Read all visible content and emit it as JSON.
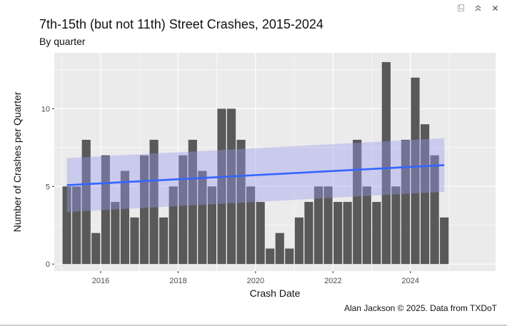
{
  "window_controls": {
    "icons": [
      "restore-icon",
      "collapse-icon",
      "close-icon"
    ]
  },
  "chart_data": {
    "type": "bar",
    "title": "7th-15th (but not 11th) Street Crashes, 2015-2024",
    "subtitle": "By quarter",
    "caption": "Alan Jackson © 2025. Data from TXDoT",
    "xlabel": "Crash Date",
    "ylabel": "Number of Crashes per Quarter",
    "x_ticks": [
      "2016",
      "2018",
      "2020",
      "2022",
      "2024"
    ],
    "y_ticks": [
      "0",
      "5",
      "10"
    ],
    "xlim": [
      2014.8,
      2026.2
    ],
    "ylim": [
      -0.45,
      13.6
    ],
    "grid": true,
    "panel_color": "#ebebeb",
    "bar_color": "#595959",
    "series": [
      {
        "x": [
          2015.125,
          2015.375,
          2015.625,
          2015.875,
          2016.125,
          2016.375,
          2016.625,
          2016.875,
          2017.125,
          2017.375,
          2017.625,
          2017.875,
          2018.125,
          2018.375,
          2018.625,
          2018.875,
          2019.125,
          2019.375,
          2019.625,
          2019.875,
          2020.125,
          2020.375,
          2020.625,
          2020.875,
          2021.125,
          2021.375,
          2021.625,
          2021.875,
          2022.125,
          2022.375,
          2022.625,
          2022.875,
          2023.125,
          2023.375,
          2023.625,
          2023.875,
          2024.125,
          2024.375,
          2024.625,
          2024.875
        ],
        "values": [
          5,
          5,
          8,
          2,
          7,
          4,
          6,
          3,
          7,
          8,
          3,
          5,
          7,
          8,
          6,
          5,
          10,
          10,
          8,
          5,
          4,
          1,
          2,
          1,
          3,
          4,
          5,
          5,
          4,
          4,
          8,
          5,
          4,
          13,
          5,
          8,
          12,
          9,
          7,
          3
        ]
      }
    ],
    "trend": {
      "type": "linear",
      "color": "#3366ff",
      "band_color": "#9999ee",
      "x": [
        2015.125,
        2024.875
      ],
      "y": [
        5.08,
        6.37
      ],
      "lower": [
        3.35,
        4.65
      ],
      "upper": [
        6.82,
        8.1
      ]
    }
  }
}
